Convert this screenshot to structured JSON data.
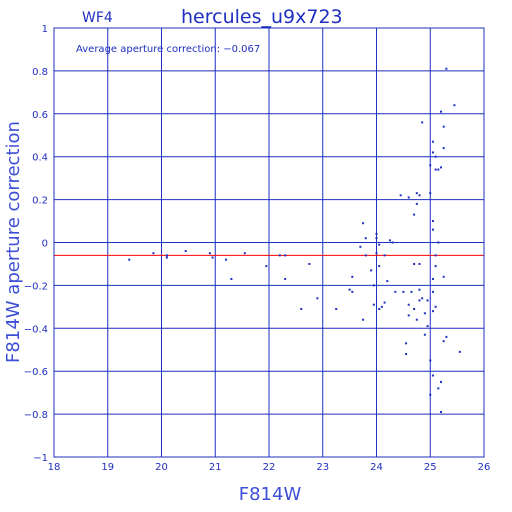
{
  "chart_data": {
    "type": "scatter",
    "panel_label": "WF4",
    "title": "hercules_u9x723",
    "annotation": "Average aperture correction: −0.067",
    "xlabel": "F814W",
    "ylabel": "F814W aperture correction",
    "xlim": [
      18,
      26
    ],
    "ylim": [
      -1,
      1
    ],
    "x_ticks": [
      "18",
      "19",
      "20",
      "21",
      "22",
      "23",
      "24",
      "25",
      "26"
    ],
    "y_ticks": [
      "−1",
      "−0.8",
      "−0.6",
      "−0.4",
      "−0.2",
      "0",
      "0.2",
      "0.4",
      "0.6",
      "0.8",
      "1"
    ],
    "grid": true,
    "reference_line": {
      "y": -0.06,
      "color": "#ff0000"
    },
    "point_color": "#1f2fbf",
    "axis_color": "#1f2fbf",
    "points": [
      [
        19.4,
        -0.08
      ],
      [
        19.85,
        -0.05
      ],
      [
        20.1,
        -0.06
      ],
      [
        20.1,
        -0.07
      ],
      [
        20.45,
        -0.04
      ],
      [
        20.9,
        -0.05
      ],
      [
        20.95,
        -0.07
      ],
      [
        21.2,
        -0.08
      ],
      [
        21.3,
        -0.17
      ],
      [
        21.55,
        -0.05
      ],
      [
        21.95,
        -0.11
      ],
      [
        22.2,
        -0.06
      ],
      [
        22.3,
        -0.06
      ],
      [
        22.3,
        -0.17
      ],
      [
        22.6,
        -0.31
      ],
      [
        22.75,
        -0.1
      ],
      [
        22.9,
        -0.26
      ],
      [
        23.25,
        -0.31
      ],
      [
        23.5,
        -0.22
      ],
      [
        23.55,
        -0.23
      ],
      [
        23.55,
        -0.16
      ],
      [
        23.7,
        -0.02
      ],
      [
        23.75,
        -0.36
      ],
      [
        23.75,
        0.09
      ],
      [
        23.8,
        0.02
      ],
      [
        23.8,
        -0.06
      ],
      [
        23.9,
        -0.13
      ],
      [
        23.95,
        -0.29
      ],
      [
        23.95,
        -0.2
      ],
      [
        24.0,
        0.02
      ],
      [
        24.0,
        0.04
      ],
      [
        24.0,
        -0.05
      ],
      [
        24.05,
        -0.01
      ],
      [
        24.05,
        -0.31
      ],
      [
        24.05,
        -0.11
      ],
      [
        24.1,
        -0.3
      ],
      [
        24.15,
        -0.06
      ],
      [
        24.15,
        -0.28
      ],
      [
        24.2,
        -0.18
      ],
      [
        24.25,
        0.01
      ],
      [
        24.3,
        0.0
      ],
      [
        24.35,
        -0.23
      ],
      [
        24.45,
        0.22
      ],
      [
        24.5,
        -0.23
      ],
      [
        24.55,
        -0.47
      ],
      [
        24.55,
        -0.52
      ],
      [
        24.6,
        0.21
      ],
      [
        24.6,
        -0.29
      ],
      [
        24.6,
        -0.34
      ],
      [
        24.65,
        -0.23
      ],
      [
        24.7,
        0.13
      ],
      [
        24.7,
        -0.31
      ],
      [
        24.7,
        -0.1
      ],
      [
        24.75,
        0.18
      ],
      [
        24.75,
        0.23
      ],
      [
        24.75,
        -0.36
      ],
      [
        24.8,
        0.22
      ],
      [
        24.8,
        -0.22
      ],
      [
        24.8,
        -0.27
      ],
      [
        24.8,
        -0.1
      ],
      [
        24.85,
        0.56
      ],
      [
        24.85,
        -0.26
      ],
      [
        24.9,
        -0.33
      ],
      [
        24.9,
        -0.43
      ],
      [
        24.95,
        -0.39
      ],
      [
        24.95,
        -0.27
      ],
      [
        25.0,
        -0.71
      ],
      [
        25.0,
        -0.55
      ],
      [
        25.0,
        0.36
      ],
      [
        25.0,
        0.23
      ],
      [
        25.05,
        0.47
      ],
      [
        25.05,
        0.42
      ],
      [
        25.05,
        0.1
      ],
      [
        25.05,
        0.06
      ],
      [
        25.05,
        -0.17
      ],
      [
        25.05,
        -0.23
      ],
      [
        25.05,
        -0.32
      ],
      [
        25.05,
        -0.62
      ],
      [
        25.1,
        0.4
      ],
      [
        25.1,
        0.34
      ],
      [
        25.1,
        -0.06
      ],
      [
        25.1,
        -0.11
      ],
      [
        25.1,
        -0.3
      ],
      [
        25.15,
        0.34
      ],
      [
        25.15,
        0.0
      ],
      [
        25.15,
        -0.68
      ],
      [
        25.2,
        -0.79
      ],
      [
        25.2,
        -0.65
      ],
      [
        25.2,
        0.61
      ],
      [
        25.2,
        0.35
      ],
      [
        25.25,
        0.54
      ],
      [
        25.25,
        0.44
      ],
      [
        25.25,
        -0.46
      ],
      [
        25.25,
        -0.16
      ],
      [
        25.3,
        0.81
      ],
      [
        25.3,
        -0.44
      ],
      [
        25.45,
        0.64
      ],
      [
        25.55,
        -0.51
      ]
    ]
  }
}
